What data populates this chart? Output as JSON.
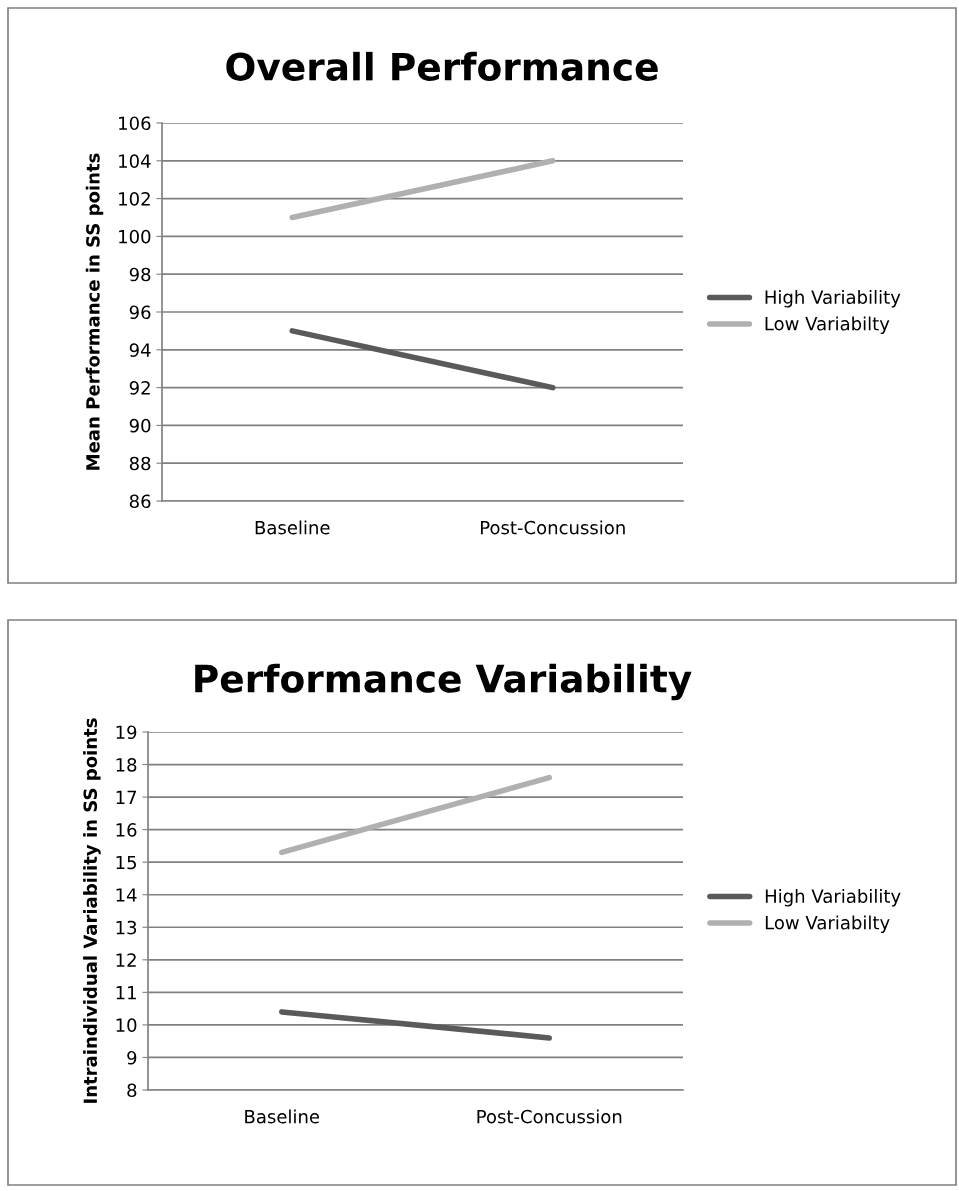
{
  "chart_data": [
    {
      "type": "line",
      "title": "Overall Performance",
      "ylabel": "Mean Performance in SS points",
      "categories": [
        "Baseline",
        "Post-Concussion"
      ],
      "series": [
        {
          "name": "High Variability",
          "color": "#5a5a5a",
          "values": [
            95,
            92
          ]
        },
        {
          "name": "Low Variabilty",
          "color": "#b0b0b0",
          "values": [
            101,
            104
          ]
        }
      ],
      "ylim": [
        86,
        106
      ],
      "yticks": [
        86,
        88,
        90,
        92,
        94,
        96,
        98,
        100,
        102,
        104,
        106
      ],
      "grid": "y",
      "legend": "right",
      "marker": "none",
      "line_style": "solid"
    },
    {
      "type": "line",
      "title": "Performance Variability",
      "ylabel": "Intraindividual Variability in SS points",
      "categories": [
        "Baseline",
        "Post-Concussion"
      ],
      "series": [
        {
          "name": "High Variability",
          "color": "#5a5a5a",
          "values": [
            10.4,
            9.6
          ]
        },
        {
          "name": "Low Variabilty",
          "color": "#b0b0b0",
          "values": [
            15.3,
            17.6
          ]
        }
      ],
      "ylim": [
        8,
        19
      ],
      "yticks": [
        8,
        9,
        10,
        11,
        12,
        13,
        14,
        15,
        16,
        17,
        18,
        19
      ],
      "grid": "y",
      "legend": "right",
      "marker": "none",
      "line_style": "solid"
    }
  ]
}
